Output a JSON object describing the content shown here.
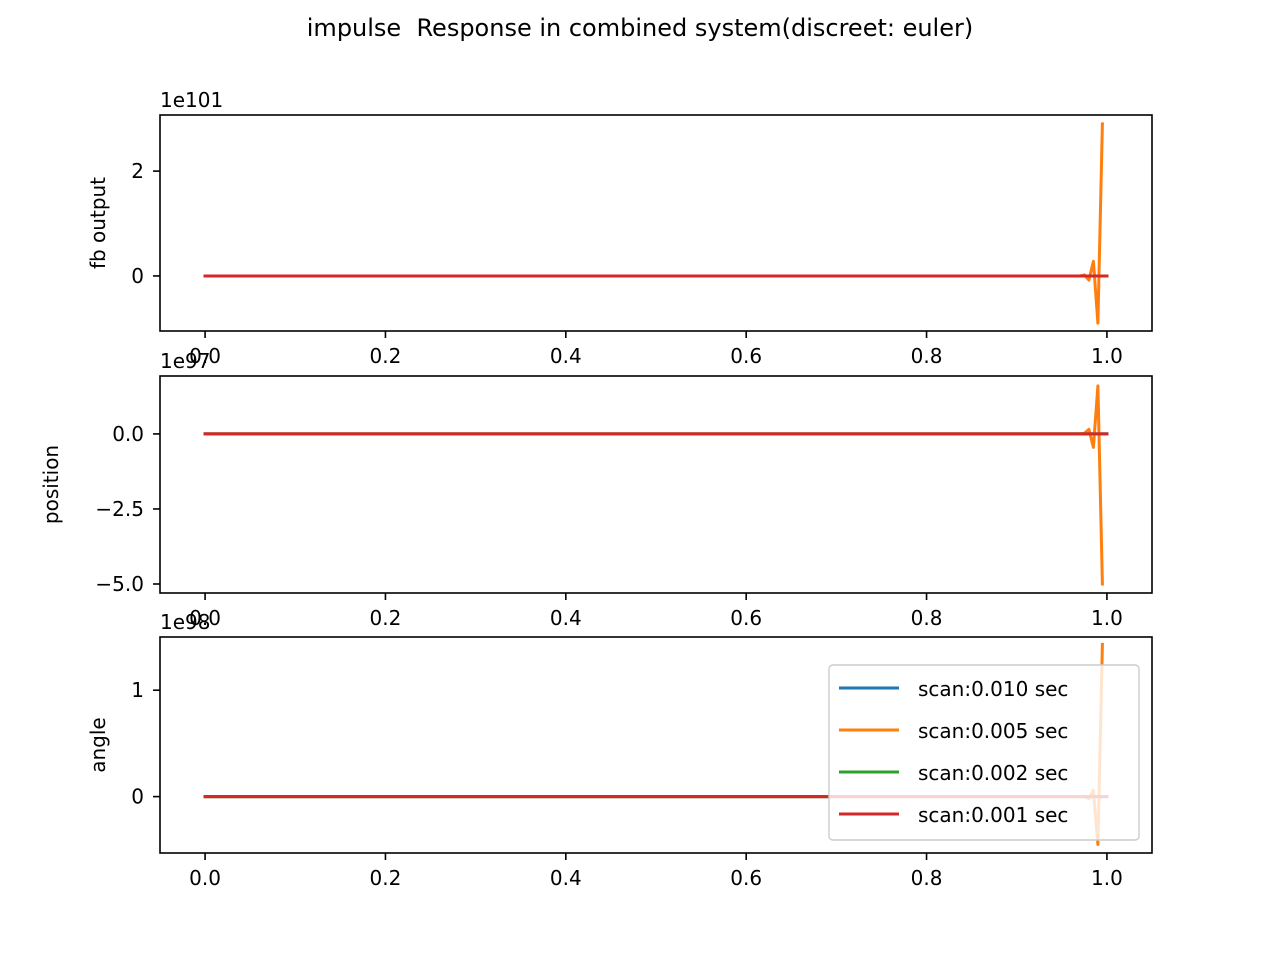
{
  "figure": {
    "title": "impulse  Response in combined system(discreet: euler)",
    "background": "#ffffff"
  },
  "colors": {
    "scan_0.010": "#1f77b4",
    "scan_0.005": "#ff7f0e",
    "scan_0.002": "#2ca02c",
    "scan_0.001": "#d62728",
    "axes": "#000000",
    "legend_border": "#cccccc"
  },
  "chart_data": [
    {
      "type": "line",
      "title": "",
      "xlabel": "",
      "ylabel": "fb output",
      "y_offset_label": "1e101",
      "xlim": [
        -0.05,
        1.05
      ],
      "ylim": [
        -1.05,
        3.07
      ],
      "x_ticks": [
        "0.0",
        "0.2",
        "0.4",
        "0.6",
        "0.8",
        "1.0"
      ],
      "y_ticks": [
        "0",
        "2"
      ],
      "y_tick_values": [
        0,
        2
      ],
      "grid": false,
      "legend": null,
      "series": [
        {
          "name": "scan:0.010 sec",
          "x": [
            0.0,
            1.0
          ],
          "y": [
            0,
            0
          ]
        },
        {
          "name": "scan:0.005 sec",
          "x": [
            0.0,
            0.97,
            0.975,
            0.98,
            0.985,
            0.99,
            0.995
          ],
          "y": [
            0,
            0,
            0.02,
            -0.08,
            0.28,
            -0.9,
            2.9
          ]
        },
        {
          "name": "scan:0.002 sec",
          "x": [
            0.0,
            1.0
          ],
          "y": [
            0,
            0
          ]
        },
        {
          "name": "scan:0.001 sec",
          "x": [
            0.0,
            1.0
          ],
          "y": [
            0,
            0
          ]
        }
      ]
    },
    {
      "type": "line",
      "title": "",
      "xlabel": "",
      "ylabel": "position",
      "y_offset_label": "1e97",
      "xlim": [
        -0.05,
        1.05
      ],
      "ylim": [
        -5.3,
        1.93
      ],
      "x_ticks": [
        "0.0",
        "0.2",
        "0.4",
        "0.6",
        "0.8",
        "1.0"
      ],
      "y_ticks": [
        "0.0",
        "−2.5",
        "−5.0"
      ],
      "y_tick_values": [
        0,
        -2.5,
        -5.0
      ],
      "grid": false,
      "legend": null,
      "series": [
        {
          "name": "scan:0.010 sec",
          "x": [
            0.0,
            1.0
          ],
          "y": [
            0,
            0
          ]
        },
        {
          "name": "scan:0.005 sec",
          "x": [
            0.0,
            0.97,
            0.975,
            0.98,
            0.985,
            0.99,
            0.995
          ],
          "y": [
            0,
            0,
            0.02,
            0.15,
            -0.45,
            1.6,
            -5.0
          ]
        },
        {
          "name": "scan:0.002 sec",
          "x": [
            0.0,
            1.0
          ],
          "y": [
            0,
            0
          ]
        },
        {
          "name": "scan:0.001 sec",
          "x": [
            0.0,
            1.0
          ],
          "y": [
            0,
            0
          ]
        }
      ]
    },
    {
      "type": "line",
      "title": "",
      "xlabel": "",
      "ylabel": "angle",
      "y_offset_label": "1e98",
      "xlim": [
        -0.05,
        1.05
      ],
      "ylim": [
        -0.53,
        1.5
      ],
      "x_ticks": [
        "0.0",
        "0.2",
        "0.4",
        "0.6",
        "0.8",
        "1.0"
      ],
      "y_ticks": [
        "0",
        "1"
      ],
      "y_tick_values": [
        0,
        1
      ],
      "grid": false,
      "legend": {
        "position": "lower right",
        "entries": [
          "scan:0.010 sec",
          "scan:0.005 sec",
          "scan:0.002 sec",
          "scan:0.001 sec"
        ]
      },
      "series": [
        {
          "name": "scan:0.010 sec",
          "x": [
            0.0,
            1.0
          ],
          "y": [
            0,
            0
          ]
        },
        {
          "name": "scan:0.005 sec",
          "x": [
            0.0,
            0.97,
            0.975,
            0.98,
            0.985,
            0.99,
            0.995
          ],
          "y": [
            0,
            0,
            0.0,
            -0.02,
            0.06,
            -0.45,
            1.43
          ]
        },
        {
          "name": "scan:0.002 sec",
          "x": [
            0.0,
            1.0
          ],
          "y": [
            0,
            0
          ]
        },
        {
          "name": "scan:0.001 sec",
          "x": [
            0.0,
            1.0
          ],
          "y": [
            0,
            0
          ]
        }
      ]
    }
  ]
}
